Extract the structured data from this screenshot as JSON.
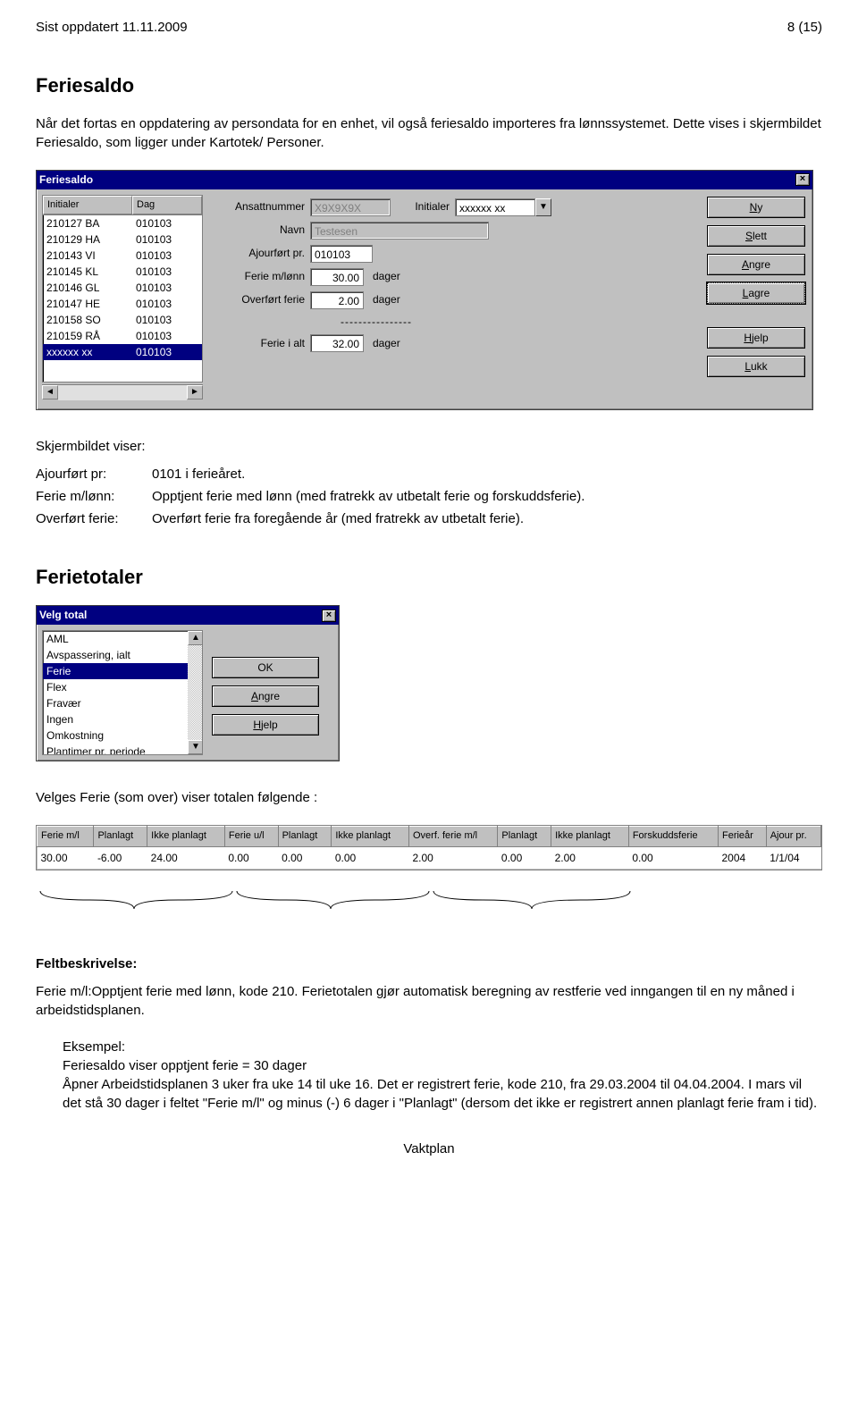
{
  "header": {
    "updated": "Sist oppdatert 11.11.2009",
    "page": "8 (15)"
  },
  "section1": {
    "title": "Feriesaldo",
    "intro": "Når det fortas en oppdatering av persondata for en enhet, vil også feriesaldo importeres fra lønnssystemet. Dette vises i skjermbildet Feriesaldo, som ligger under Kartotek/ Personer."
  },
  "feriesaldo_window": {
    "title": "Feriesaldo",
    "list_headers": {
      "col1": "Initialer",
      "col2": "Dag"
    },
    "rows": [
      {
        "initials": "210127 BA",
        "date": "010103"
      },
      {
        "initials": "210129 HA",
        "date": "010103"
      },
      {
        "initials": "210143 VI",
        "date": "010103"
      },
      {
        "initials": "210145 KL",
        "date": "010103"
      },
      {
        "initials": "210146 GL",
        "date": "010103"
      },
      {
        "initials": "210147 HE",
        "date": "010103"
      },
      {
        "initials": "210158 SO",
        "date": "010103"
      },
      {
        "initials": "210159 RÅ",
        "date": "010103"
      },
      {
        "initials": "xxxxxx xx",
        "date": "010103"
      }
    ],
    "labels": {
      "ansattnummer": "Ansattnummer",
      "initialer": "Initialer",
      "navn": "Navn",
      "ajourfort": "Ajourført pr.",
      "ferie_mlonn": "Ferie m/lønn",
      "overfort": "Overført ferie",
      "ferie_ialt": "Ferie i alt",
      "dager": "dager"
    },
    "values": {
      "ansattnummer": "X9X9X9X",
      "initialer": "xxxxxx xx",
      "navn": "Testesen",
      "ajourfort": "010103",
      "ferie_mlonn": "30.00",
      "overfort": "2.00",
      "ferie_ialt": "32.00"
    },
    "buttons": {
      "ny": "Ny",
      "slett": "Slett",
      "angre": "Angre",
      "lagre": "Lagre",
      "hjelp": "Hjelp",
      "lukk": "Lukk"
    },
    "dashed": "----------------"
  },
  "desc": {
    "title": "Skjermbildet viser:",
    "rows": [
      {
        "label": "Ajourført pr:",
        "value": "0101 i ferieåret."
      },
      {
        "label": "Ferie m/lønn:",
        "value": "Opptjent ferie med lønn (med fratrekk av utbetalt ferie og forskuddsferie)."
      },
      {
        "label": "Overført ferie:",
        "value": "Overført ferie fra foregående år (med fratrekk av utbetalt ferie)."
      }
    ]
  },
  "section2": {
    "title": "Ferietotaler"
  },
  "velg_window": {
    "title": "Velg total",
    "items": [
      "AML",
      "Avspassering, ialt",
      "Ferie",
      "Flex",
      "Fravær",
      "Ingen",
      "Omkostning",
      "Plantimer pr. periode"
    ],
    "selected": "Ferie",
    "buttons": {
      "ok": "OK",
      "angre": "Angre",
      "hjelp": "Hjelp"
    }
  },
  "velges_text": "Velges Ferie (som over) viser totalen følgende :",
  "totals": {
    "headers": [
      "Ferie m/l",
      "Planlagt",
      "Ikke planlagt",
      "Ferie u/l",
      "Planlagt",
      "Ikke planlagt",
      "Overf. ferie m/l",
      "Planlagt",
      "Ikke planlagt",
      "Forskuddsferie",
      "Ferieår",
      "Ajour pr."
    ],
    "row": [
      "30.00",
      "-6.00",
      "24.00",
      "0.00",
      "0.00",
      "0.00",
      "2.00",
      "0.00",
      "2.00",
      "0.00",
      "2004",
      "1/1/04"
    ]
  },
  "feltbesk": {
    "title": "Feltbeskrivelse:",
    "p1": "Ferie m/l:Opptjent ferie med lønn, kode 210. Ferietotalen gjør automatisk beregning av restferie ved inngangen til en ny måned i arbeidstidsplanen.",
    "eksempel_title": "Eksempel:",
    "eksempel_body": "Feriesaldo viser opptjent ferie = 30 dager\nÅpner Arbeidstidsplanen 3 uker fra uke 14 til uke 16. Det er registrert ferie, kode 210, fra 29.03.2004 til 04.04.2004. I mars vil det stå 30 dager i feltet \"Ferie m/l\" og minus (-) 6 dager i \"Planlagt\" (dersom det ikke er registrert annen planlagt ferie fram i tid)."
  },
  "footer": "Vaktplan"
}
